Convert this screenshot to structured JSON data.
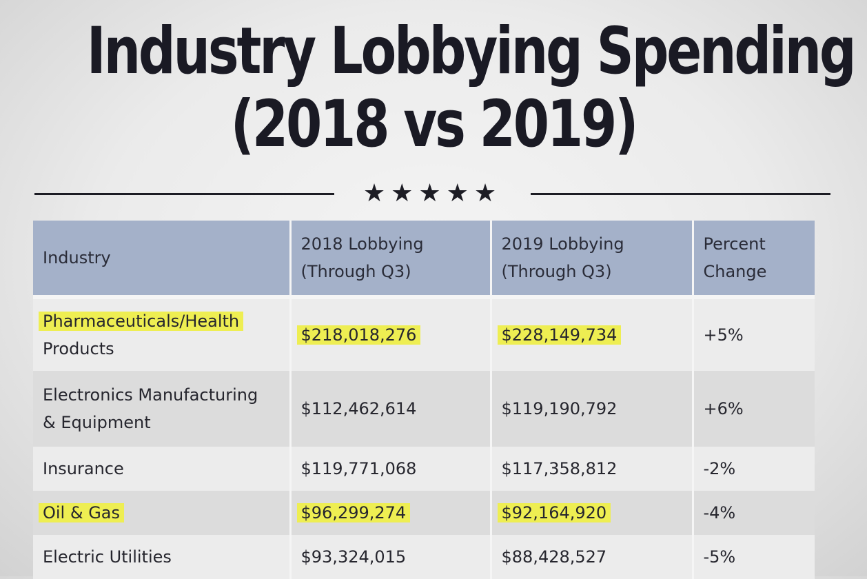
{
  "title": {
    "line1": "Industry Lobbying Spending",
    "line2": "(2018 vs 2019)"
  },
  "divider": {
    "stars": "★★★★★"
  },
  "colors": {
    "header_bg": "#a4b1c9",
    "highlight": "#eeee52",
    "row_light": "#ececec",
    "row_dark": "#dcdcdc",
    "text": "#1c1c24"
  },
  "chart_data": {
    "type": "table",
    "title": "Industry Lobbying Spending (2018 vs 2019)",
    "columns": [
      "Industry",
      "2018 Lobbying (Through Q3)",
      "2019 Lobbying (Through Q3)",
      "Percent Change"
    ],
    "header": {
      "industry": "Industry",
      "y2018": {
        "line1": "2018 Lobbying",
        "line2": "(Through Q3)"
      },
      "y2019": {
        "line1": "2019 Lobbying",
        "line2": "(Through Q3)"
      },
      "change": {
        "line1": "Percent",
        "line2": "Change"
      }
    },
    "rows": [
      {
        "industry_line1": "Pharmaceuticals/Health",
        "industry_line2": "Products",
        "y2018": "$218,018,276",
        "y2019": "$228,149,734",
        "change": "+5%",
        "highlighted": true
      },
      {
        "industry_line1": "Electronics Manufacturing",
        "industry_line2": "& Equipment",
        "y2018": "$112,462,614",
        "y2019": "$119,190,792",
        "change": "+6%",
        "highlighted": false
      },
      {
        "industry_line1": "Insurance",
        "industry_line2": "",
        "y2018": "$119,771,068",
        "y2019": "$117,358,812",
        "change": "-2%",
        "highlighted": false
      },
      {
        "industry_line1": "Oil & Gas",
        "industry_line2": "",
        "y2018": "$96,299,274",
        "y2019": "$92,164,920",
        "change": "-4%",
        "highlighted": true
      },
      {
        "industry_line1": "Electric Utilities",
        "industry_line2": "",
        "y2018": "$93,324,015",
        "y2019": "$88,428,527",
        "change": "-5%",
        "highlighted": false
      }
    ]
  }
}
